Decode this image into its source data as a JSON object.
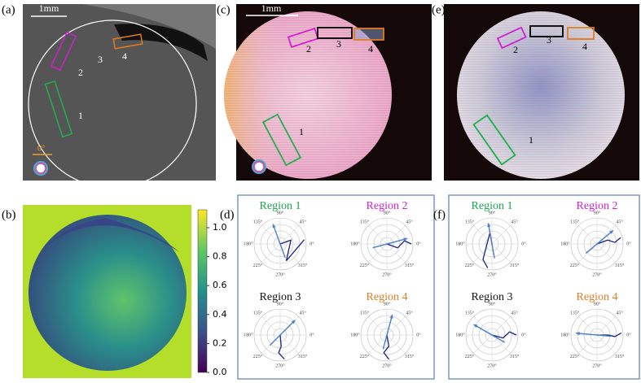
{
  "panels": {
    "a": {
      "label": "(a)",
      "scale_bar": "1mm",
      "angle": "0°",
      "regions": [
        "1",
        "2",
        "3",
        "4"
      ]
    },
    "b": {
      "label": "(b)",
      "colorbar_ticks": [
        "0.0",
        "0.2",
        "0.4",
        "0.6",
        "0.8",
        "1.0"
      ]
    },
    "c": {
      "label": "(c)",
      "scale_bar": "1mm",
      "regions": [
        "1",
        "2",
        "3",
        "4"
      ]
    },
    "d": {
      "label": "(d)",
      "plots": [
        {
          "title": "Region 1"
        },
        {
          "title": "Region 2"
        },
        {
          "title": "Region 3"
        },
        {
          "title": "Region 4"
        }
      ]
    },
    "e": {
      "label": "(e)",
      "regions": [
        "1",
        "2",
        "3",
        "4"
      ]
    },
    "f": {
      "label": "(f)",
      "plots": [
        {
          "title": "Region 1"
        },
        {
          "title": "Region 2"
        },
        {
          "title": "Region 3"
        },
        {
          "title": "Region 4"
        }
      ]
    }
  },
  "polar_angle_labels": [
    "90°",
    "45°",
    "0°",
    "315°",
    "270°",
    "225°",
    "180°",
    "135°"
  ]
}
